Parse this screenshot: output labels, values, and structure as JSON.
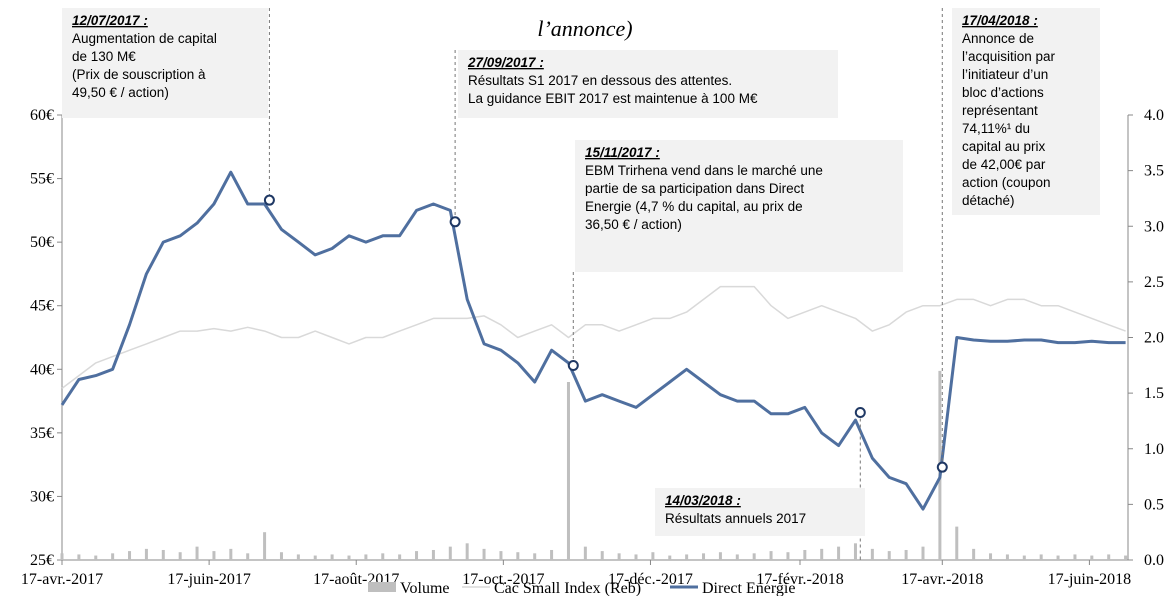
{
  "chart_data": {
    "type": "line",
    "title": "l’annonce)",
    "x": [
      "2017-04-17",
      "2017-04-24",
      "2017-05-01",
      "2017-05-08",
      "2017-05-15",
      "2017-05-22",
      "2017-05-29",
      "2017-06-05",
      "2017-06-12",
      "2017-06-19",
      "2017-06-26",
      "2017-07-03",
      "2017-07-10",
      "2017-07-17",
      "2017-07-24",
      "2017-07-31",
      "2017-08-07",
      "2017-08-14",
      "2017-08-21",
      "2017-08-28",
      "2017-09-04",
      "2017-09-11",
      "2017-09-18",
      "2017-09-25",
      "2017-10-02",
      "2017-10-09",
      "2017-10-16",
      "2017-10-23",
      "2017-10-30",
      "2017-11-06",
      "2017-11-13",
      "2017-11-20",
      "2017-11-27",
      "2017-12-04",
      "2017-12-11",
      "2017-12-18",
      "2017-12-25",
      "2018-01-01",
      "2018-01-08",
      "2018-01-15",
      "2018-01-22",
      "2018-01-29",
      "2018-02-05",
      "2018-02-12",
      "2018-02-19",
      "2018-02-26",
      "2018-03-05",
      "2018-03-12",
      "2018-03-19",
      "2018-03-26",
      "2018-04-02",
      "2018-04-09",
      "2018-04-16",
      "2018-04-23",
      "2018-04-30",
      "2018-05-07",
      "2018-05-14",
      "2018-05-21",
      "2018-05-28",
      "2018-06-04",
      "2018-06-11",
      "2018-06-18",
      "2018-06-25",
      "2018-07-02"
    ],
    "series": [
      {
        "name": "Volume",
        "type": "bar",
        "axis": "y2",
        "color": "#bfbfbf",
        "values": [
          0.06,
          0.05,
          0.04,
          0.06,
          0.08,
          0.1,
          0.09,
          0.07,
          0.12,
          0.08,
          0.1,
          0.06,
          0.25,
          0.07,
          0.05,
          0.04,
          0.05,
          0.04,
          0.05,
          0.06,
          0.05,
          0.08,
          0.09,
          0.12,
          0.15,
          0.1,
          0.08,
          0.07,
          0.06,
          0.09,
          1.6,
          0.12,
          0.08,
          0.06,
          0.05,
          0.07,
          0.04,
          0.05,
          0.06,
          0.07,
          0.05,
          0.06,
          0.08,
          0.07,
          0.09,
          0.1,
          0.12,
          0.15,
          0.1,
          0.08,
          0.09,
          0.12,
          1.7,
          0.3,
          0.1,
          0.06,
          0.05,
          0.04,
          0.05,
          0.04,
          0.05,
          0.04,
          0.05,
          0.04
        ]
      },
      {
        "name": "Cac Small Index (Reb)",
        "color": "#d9d9d9",
        "values": [
          38.5,
          39.5,
          40.5,
          41,
          41.5,
          42,
          42.5,
          43,
          43,
          43.2,
          43,
          43.3,
          43,
          42.5,
          42.5,
          43,
          42.5,
          42,
          42.5,
          42.5,
          43,
          43.5,
          44,
          44,
          44,
          44.2,
          43.5,
          42.5,
          43,
          43.5,
          42.5,
          43.5,
          43.5,
          43,
          43.5,
          44,
          44,
          44.5,
          45.5,
          46.5,
          46.5,
          46.5,
          45,
          44,
          44.5,
          45,
          44.5,
          44,
          43,
          43.5,
          44.5,
          45,
          45,
          45.5,
          45.5,
          45,
          45.5,
          45.5,
          45,
          45,
          44.5,
          44,
          43.5,
          43
        ]
      },
      {
        "name": "Direct Energie",
        "color": "#4f6f9f",
        "values": [
          37.2,
          39.2,
          39.5,
          40,
          43.5,
          47.5,
          50,
          50.5,
          51.5,
          53,
          55.5,
          53,
          53,
          51,
          50,
          49,
          49.5,
          50.5,
          50,
          50.5,
          50.5,
          52.5,
          53,
          52.5,
          45.5,
          42,
          41.5,
          40.5,
          39,
          41.5,
          40.5,
          37.5,
          38,
          37.5,
          37,
          38,
          39,
          40,
          39,
          38,
          37.5,
          37.5,
          36.5,
          36.5,
          37,
          35,
          34,
          36,
          33,
          31.5,
          31,
          29,
          31.5,
          42.5,
          42.3,
          42.2,
          42.2,
          42.3,
          42.3,
          42.1,
          42.1,
          42.2,
          42.1,
          42.1
        ]
      }
    ],
    "xlim": [
      "2017-04-17",
      "2018-07-03"
    ],
    "xticks": [
      {
        "value": "2017-04-17",
        "label": "17-avr.-2017"
      },
      {
        "value": "2017-06-17",
        "label": "17-juin-2017"
      },
      {
        "value": "2017-08-17",
        "label": "17-août-2017"
      },
      {
        "value": "2017-10-17",
        "label": "17-oct.-2017"
      },
      {
        "value": "2017-12-17",
        "label": "17-déc.-2017"
      },
      {
        "value": "2018-02-17",
        "label": "17-févr.-2018"
      },
      {
        "value": "2018-04-17",
        "label": "17-avr.-2018"
      },
      {
        "value": "2018-06-17",
        "label": "17-juin-2018"
      }
    ],
    "ylim": [
      25,
      60
    ],
    "yticks": [
      {
        "value": 25,
        "label": "25€"
      },
      {
        "value": 30,
        "label": "30€"
      },
      {
        "value": 35,
        "label": "35€"
      },
      {
        "value": 40,
        "label": "40€"
      },
      {
        "value": 45,
        "label": "45€"
      },
      {
        "value": 50,
        "label": "50€"
      },
      {
        "value": 55,
        "label": "55€"
      },
      {
        "value": 60,
        "label": "60€"
      }
    ],
    "y2lim": [
      0,
      4
    ],
    "y2ticks": [
      {
        "value": 0,
        "label": "0.0"
      },
      0.5,
      {
        "value": 1,
        "label": "1.0"
      },
      1.5,
      {
        "value": 2,
        "label": "2.0"
      },
      2.5,
      {
        "value": 3,
        "label": "3.0"
      },
      3.5,
      {
        "value": 4,
        "label": "4.0"
      }
    ],
    "annotations": [
      {
        "date": "12/07/2017 :",
        "lines": [
          "Augmentation de capital",
          "de 130 M€",
          "(Prix de souscription à",
          "49,50 € / action)"
        ],
        "x": "2017-07-12",
        "y": 53.3
      },
      {
        "date": "27/09/2017 :",
        "lines": [
          "Résultats S1 2017 en dessous des attentes.",
          "La guidance EBIT 2017 est maintenue à 100 M€"
        ],
        "x": "2017-09-27",
        "y": 51.6
      },
      {
        "date": "15/11/2017 :",
        "lines": [
          "EBM Trirhena vend dans le marché une",
          "partie de sa participation dans Direct",
          "Energie (4,7 % du capital, au prix de",
          "36,50 € / action)"
        ],
        "x": "2017-11-15",
        "y": 40.3
      },
      {
        "date": "14/03/2018 :",
        "lines": [
          "Résultats annuels 2017"
        ],
        "x": "2018-03-14",
        "y": 36.6
      },
      {
        "date": "17/04/2018 :",
        "lines": [
          "Annonce de",
          "l’acquisition par",
          "l’initiateur d’un",
          "bloc d’actions",
          "représentant",
          "74,11%¹ du",
          "capital au prix",
          "de 42,00€ par",
          "action (coupon",
          "détaché)"
        ],
        "x": "2018-04-17",
        "y": 32.3
      }
    ]
  }
}
